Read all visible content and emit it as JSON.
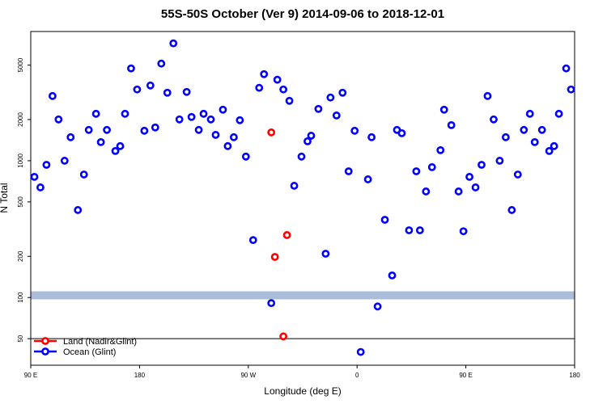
{
  "chart_data": {
    "type": "scatter",
    "title": "55S-50S October (Ver 9)   2014-09-06 to 2018-12-01",
    "x_label": "Longitude (deg E)",
    "y_label": "N Total",
    "log_y": true,
    "legend": "bottom-left",
    "xlim": [
      90,
      540
    ],
    "xticks": [
      {
        "value": 90,
        "label": "90 E"
      },
      180,
      {
        "value": 270,
        "label": "90 W"
      },
      {
        "value": 360,
        "label": "0"
      },
      {
        "value": 450,
        "label": "90 E"
      },
      {
        "value": 540,
        "label": "180"
      }
    ],
    "ylim": [
      32,
      8800
    ],
    "yticks": [
      50,
      100,
      200,
      500,
      1000,
      2000,
      5000
    ],
    "band": [
      97,
      111
    ],
    "band_color": "#a9bcd9",
    "hline": 50,
    "series": [
      {
        "name": "Land (Nadir&Glint)",
        "color": "#ff0000",
        "x": [
          289,
          292,
          299,
          302
        ],
        "values": [
          1611,
          198,
          52,
          286
        ]
      },
      {
        "name": "Ocean (Glint)",
        "color": "#0000ff",
        "x": [
          93,
          98,
          103,
          108,
          113,
          118,
          123,
          129,
          134,
          138,
          144,
          148,
          153,
          160,
          164,
          168,
          173,
          178,
          184,
          189,
          193,
          198,
          203,
          208,
          213,
          219,
          223,
          229,
          233,
          239,
          243,
          249,
          253,
          258,
          263,
          268,
          274,
          279,
          283,
          289,
          294,
          299,
          304,
          308,
          314,
          319,
          322,
          328,
          334,
          338,
          343,
          348,
          353,
          358,
          363,
          369,
          372,
          377,
          383,
          389,
          393,
          397,
          403,
          409,
          412,
          417,
          422,
          429,
          432,
          438,
          444,
          448,
          453,
          458,
          463,
          468,
          473,
          478,
          483,
          488,
          493,
          498,
          503,
          507,
          513,
          519,
          523,
          527,
          533,
          537
        ],
        "values": [
          762,
          638,
          933,
          2972,
          2004,
          1000,
          1485,
          436,
          793,
          1679,
          2203,
          1368,
          1679,
          1178,
          1279,
          2203,
          4728,
          3318,
          1656,
          3548,
          1750,
          5129,
          3141,
          7211,
          2004,
          3184,
          2089,
          1679,
          2203,
          2004,
          1545,
          2360,
          1279,
          1485,
          1977,
          1072,
          263,
          3412,
          4295,
          91,
          3908,
          3318,
          2742,
          656,
          1072,
          1387,
          1524,
          2393,
          209,
          2897,
          2143,
          3141,
          837,
          1656,
          40,
          731,
          1485,
          86,
          370,
          145,
          1679,
          1589,
          310,
          837,
          310,
          596,
          897,
          1194,
          2360,
          1820,
          596,
          305,
          762,
          638,
          933,
          2972,
          2004,
          1000,
          1485,
          436,
          793,
          1679,
          2203,
          1368,
          1679,
          1178,
          1279,
          2203,
          4728,
          3318
        ]
      }
    ]
  }
}
